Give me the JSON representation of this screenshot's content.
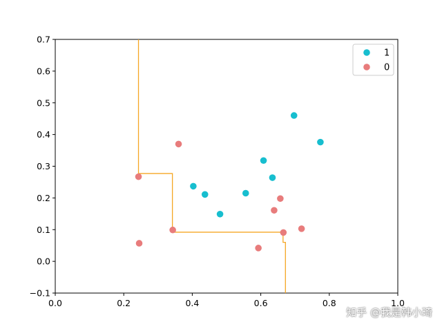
{
  "chart_data": {
    "type": "scatter",
    "title": "",
    "xlabel": "",
    "ylabel": "",
    "xlim": [
      0.0,
      1.0
    ],
    "ylim": [
      -0.1,
      0.7
    ],
    "xticks": [
      "0.0",
      "0.2",
      "0.4",
      "0.6",
      "0.8",
      "1.0"
    ],
    "yticks": [
      "-0.1",
      "0.0",
      "0.1",
      "0.2",
      "0.3",
      "0.4",
      "0.5",
      "0.6",
      "0.7"
    ],
    "legend_position": "top-right",
    "series": [
      {
        "name": "1",
        "color": "#17becf",
        "points": [
          [
            0.697,
            0.46
          ],
          [
            0.774,
            0.376
          ],
          [
            0.634,
            0.264
          ],
          [
            0.608,
            0.318
          ],
          [
            0.556,
            0.215
          ],
          [
            0.403,
            0.237
          ],
          [
            0.437,
            0.211
          ],
          [
            0.481,
            0.149
          ]
        ]
      },
      {
        "name": "0",
        "color": "#e87c7c",
        "points": [
          [
            0.666,
            0.091
          ],
          [
            0.243,
            0.267
          ],
          [
            0.245,
            0.057
          ],
          [
            0.343,
            0.099
          ],
          [
            0.639,
            0.161
          ],
          [
            0.657,
            0.198
          ],
          [
            0.36,
            0.37
          ],
          [
            0.593,
            0.042
          ],
          [
            0.719,
            0.103
          ]
        ]
      }
    ],
    "boundary": {
      "name": "decision boundary",
      "color": "#f5a623",
      "points": [
        [
          0.243,
          0.7
        ],
        [
          0.243,
          0.277
        ],
        [
          0.342,
          0.277
        ],
        [
          0.342,
          0.092
        ],
        [
          0.665,
          0.092
        ],
        [
          0.665,
          0.06
        ],
        [
          0.672,
          0.06
        ],
        [
          0.672,
          -0.1
        ]
      ]
    }
  },
  "watermark": "知乎 @我是韩小琦"
}
